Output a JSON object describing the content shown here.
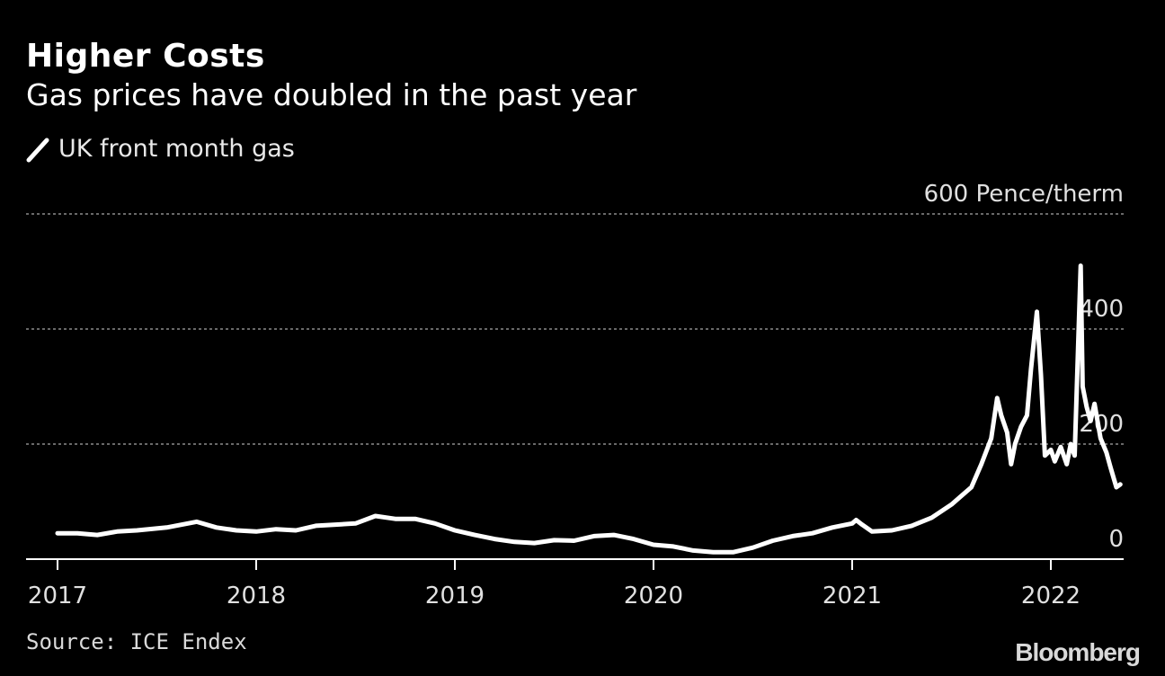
{
  "header": {
    "title": "Higher Costs",
    "subtitle": "Gas prices have doubled in the past year"
  },
  "footer": {
    "source": "Source: ICE Endex",
    "brand": "Bloomberg"
  },
  "colors": {
    "background": "#000000",
    "line": "#ffffff",
    "grid": "#8c8c8c",
    "text": "#ffffff"
  },
  "legend_icon": "diagonal-line-swatch-icon",
  "chart_data": {
    "type": "line",
    "title": "Higher Costs",
    "subtitle": "Gas prices have doubled in the past year",
    "ylabel": "Pence/therm",
    "ylim": [
      0,
      600
    ],
    "xlim": [
      2017.0,
      2022.55
    ],
    "y_ticks": [
      0,
      200,
      400,
      600
    ],
    "y_tick_labels": [
      "0",
      "200",
      "400",
      "600 Pence/therm"
    ],
    "x_ticks": [
      2017,
      2018,
      2019,
      2020,
      2021,
      2022
    ],
    "x_tick_labels": [
      "2017",
      "2018",
      "2019",
      "2020",
      "2021",
      "2022"
    ],
    "grid": "horizontal-dotted",
    "legend_placement": "top-left",
    "series": [
      {
        "name": "UK front month gas",
        "x": [
          2017.0,
          2017.1,
          2017.2,
          2017.3,
          2017.4,
          2017.55,
          2017.7,
          2017.8,
          2017.9,
          2018.0,
          2018.1,
          2018.2,
          2018.3,
          2018.4,
          2018.5,
          2018.6,
          2018.7,
          2018.8,
          2018.9,
          2019.0,
          2019.1,
          2019.2,
          2019.3,
          2019.4,
          2019.5,
          2019.6,
          2019.7,
          2019.8,
          2019.9,
          2020.0,
          2020.1,
          2020.2,
          2020.3,
          2020.4,
          2020.5,
          2020.6,
          2020.7,
          2020.8,
          2020.9,
          2021.0,
          2021.02,
          2021.05,
          2021.1,
          2021.2,
          2021.3,
          2021.4,
          2021.5,
          2021.55,
          2021.6,
          2021.65,
          2021.7,
          2021.73,
          2021.75,
          2021.78,
          2021.8,
          2021.82,
          2021.85,
          2021.88,
          2021.9,
          2021.93,
          2021.95,
          2021.97,
          2022.0,
          2022.02,
          2022.05,
          2022.08,
          2022.1,
          2022.12,
          2022.15,
          2022.16,
          2022.18,
          2022.2,
          2022.22,
          2022.25,
          2022.28,
          2022.3,
          2022.33,
          2022.35
        ],
        "values": [
          45,
          45,
          42,
          48,
          50,
          55,
          65,
          55,
          50,
          48,
          52,
          50,
          58,
          60,
          62,
          75,
          70,
          70,
          62,
          50,
          42,
          35,
          30,
          28,
          33,
          32,
          40,
          42,
          35,
          25,
          22,
          15,
          12,
          12,
          20,
          32,
          40,
          45,
          55,
          62,
          68,
          60,
          48,
          50,
          58,
          72,
          95,
          110,
          125,
          165,
          210,
          280,
          250,
          220,
          165,
          200,
          230,
          250,
          330,
          430,
          320,
          180,
          190,
          170,
          195,
          165,
          200,
          180,
          510,
          300,
          265,
          240,
          270,
          210,
          185,
          160,
          125,
          130
        ]
      }
    ]
  }
}
